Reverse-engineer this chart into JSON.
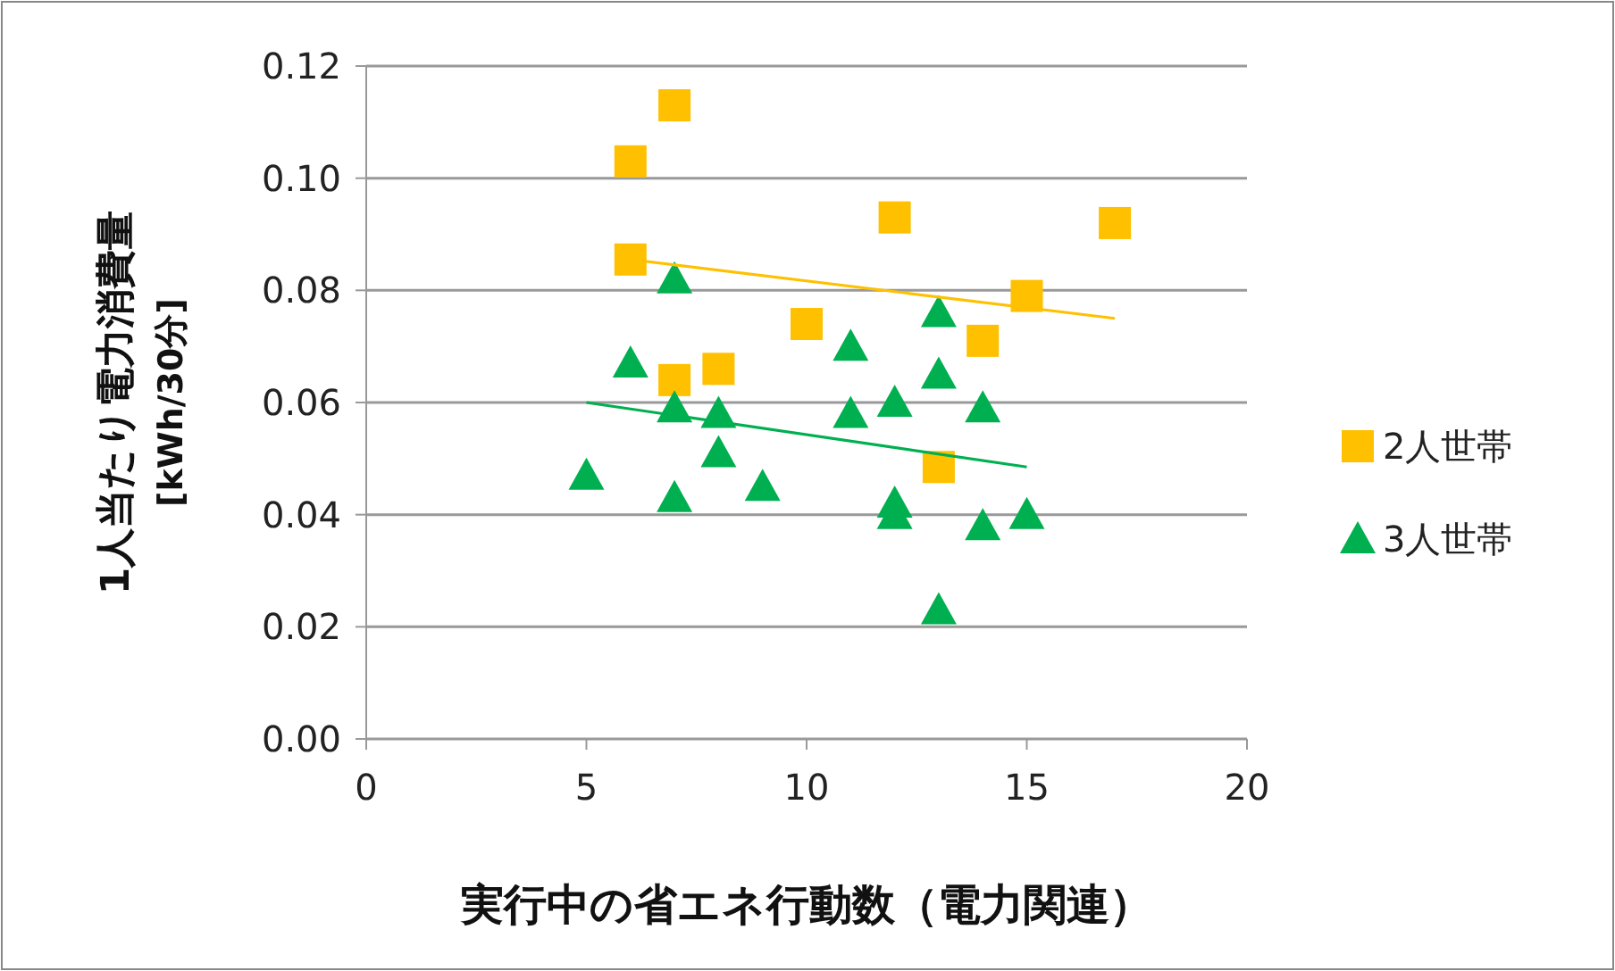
{
  "chart_data": {
    "type": "scatter",
    "xlabel": "実行中の省エネ行動数（電力関連）",
    "ylabel": "1人当たり電力消費量\n[kWh/30分]",
    "xlim": [
      0,
      20
    ],
    "xticks": [
      0,
      5,
      10,
      15,
      20
    ],
    "ylim": [
      0,
      0.12
    ],
    "yticks": [
      {
        "value": 0,
        "label": "0.00"
      },
      {
        "value": 0.02,
        "label": "0.02"
      },
      {
        "value": 0.04,
        "label": "0.04"
      },
      {
        "value": 0.06,
        "label": "0.06"
      },
      {
        "value": 0.08,
        "label": "0.08"
      },
      {
        "value": 0.1,
        "label": "0.10"
      },
      {
        "value": 0.12,
        "label": "0.12"
      }
    ],
    "grid": "y",
    "legend": "right",
    "series": [
      {
        "name": "2人世帯",
        "color": "#ffc000",
        "marker": "square",
        "x": [
          6,
          7,
          6,
          12,
          17,
          15,
          10,
          14,
          7,
          8,
          13
        ],
        "values": [
          0.103,
          0.113,
          0.0855,
          0.093,
          0.092,
          0.079,
          0.074,
          0.071,
          0.064,
          0.066,
          0.0485
        ]
      },
      {
        "name": "3人世帯",
        "color": "#00b050",
        "marker": "triangle",
        "x": [
          6,
          7,
          7,
          8,
          8,
          5,
          7,
          9,
          11,
          11,
          12,
          12,
          12,
          13,
          13,
          14,
          14,
          15,
          13
        ],
        "values": [
          0.067,
          0.082,
          0.059,
          0.058,
          0.051,
          0.047,
          0.043,
          0.045,
          0.07,
          0.058,
          0.06,
          0.042,
          0.04,
          0.076,
          0.065,
          0.059,
          0.038,
          0.04,
          0.023
        ]
      },
      {
        "type": "line",
        "color": "#ffc000",
        "x": [
          6,
          17
        ],
        "values": [
          0.0855,
          0.075
        ]
      },
      {
        "type": "line",
        "color": "#00b050",
        "x": [
          5,
          15
        ],
        "values": [
          0.06,
          0.0485
        ]
      }
    ]
  }
}
